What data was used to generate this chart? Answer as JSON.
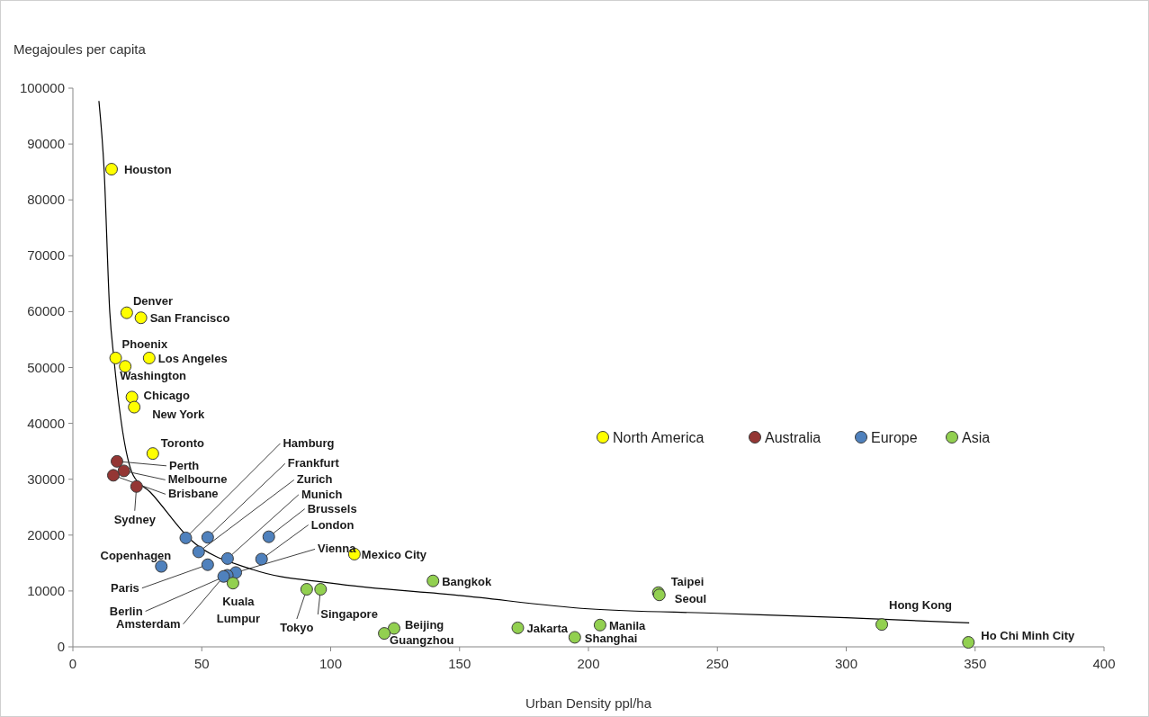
{
  "chart_data": {
    "type": "scatter",
    "xlabel": "Urban Density ppl/ha",
    "ylabel": "Megajoules per capita",
    "xlim": [
      0,
      400
    ],
    "xticks": [
      0,
      50,
      100,
      150,
      200,
      250,
      300,
      350,
      400
    ],
    "ylim": [
      0,
      100000
    ],
    "yticks": [
      0,
      10000,
      20000,
      30000,
      40000,
      50000,
      60000,
      70000,
      80000,
      90000,
      100000
    ],
    "grid": false,
    "legend": "right",
    "marker": "circle",
    "series": [
      {
        "name": "North America",
        "color": "#ffff00",
        "x": [
          15,
          20.9,
          26.4,
          16.6,
          29.6,
          20.3,
          22.9,
          23.8,
          31,
          109.2
        ],
        "values": [
          85500,
          59800,
          58900,
          51700,
          51700,
          50200,
          44700,
          42900,
          34600,
          16600
        ],
        "value_labels": [
          "Houston",
          "Denver",
          "San Francisco",
          "Phoenix",
          "Los Angeles",
          "Washington",
          "Chicago",
          "New York",
          "Toronto",
          "Mexico City"
        ]
      },
      {
        "name": "Australia",
        "color": "#943634",
        "x": [
          17.1,
          19.8,
          15.7,
          24.7
        ],
        "values": [
          33200,
          31500,
          30700,
          28700
        ],
        "value_labels": [
          "Perth",
          "Melbourne",
          "Brisbane",
          "Sydney"
        ]
      },
      {
        "name": "Europe",
        "color": "#4f81bd",
        "x": [
          43.8,
          52.3,
          48.8,
          60,
          76,
          73.2,
          63.2,
          34.3,
          52.3,
          59.9,
          58.5
        ],
        "values": [
          19500,
          19600,
          17000,
          15800,
          19700,
          15700,
          13300,
          14400,
          14700,
          12800,
          12600
        ],
        "value_labels": [
          "Hamburg",
          "Frankfurt",
          "Zurich",
          "Munich",
          "Brussels",
          "London",
          "Vienna",
          "Copenhagen",
          "Paris",
          "Berlin",
          "Amsterdam"
        ]
      },
      {
        "name": "Asia",
        "color": "#92d050",
        "x": [
          62.1,
          90.7,
          96.1,
          139.7,
          124.6,
          120.8,
          172.6,
          204.5,
          194.7,
          227.1,
          227.5,
          313.8,
          347.4
        ],
        "values": [
          11400,
          10300,
          10300,
          11800,
          3300,
          2400,
          3400,
          3900,
          1700,
          9700,
          9300,
          4000,
          800
        ],
        "value_labels": [
          "Kuala Lumpur",
          "Tokyo",
          "Singapore",
          "Bangkok",
          "Beijing",
          "Guangzhou",
          "Jakarta",
          "Manila",
          "Shanghai",
          "Taipei",
          "Seoul",
          "Hong Kong",
          "Ho Chi Minh City"
        ]
      },
      {
        "type": "line",
        "color": "#000000",
        "marker": "none",
        "x": [
          10.1,
          12.1,
          14.3,
          15.9,
          23.4,
          30,
          45.6,
          70,
          100,
          150,
          200,
          250,
          300,
          347.7
        ],
        "values": [
          97700,
          85500,
          60000,
          51700,
          30700,
          27700,
          19200,
          13800,
          11400,
          9200,
          6800,
          6000,
          5200,
          4300
        ]
      }
    ]
  }
}
